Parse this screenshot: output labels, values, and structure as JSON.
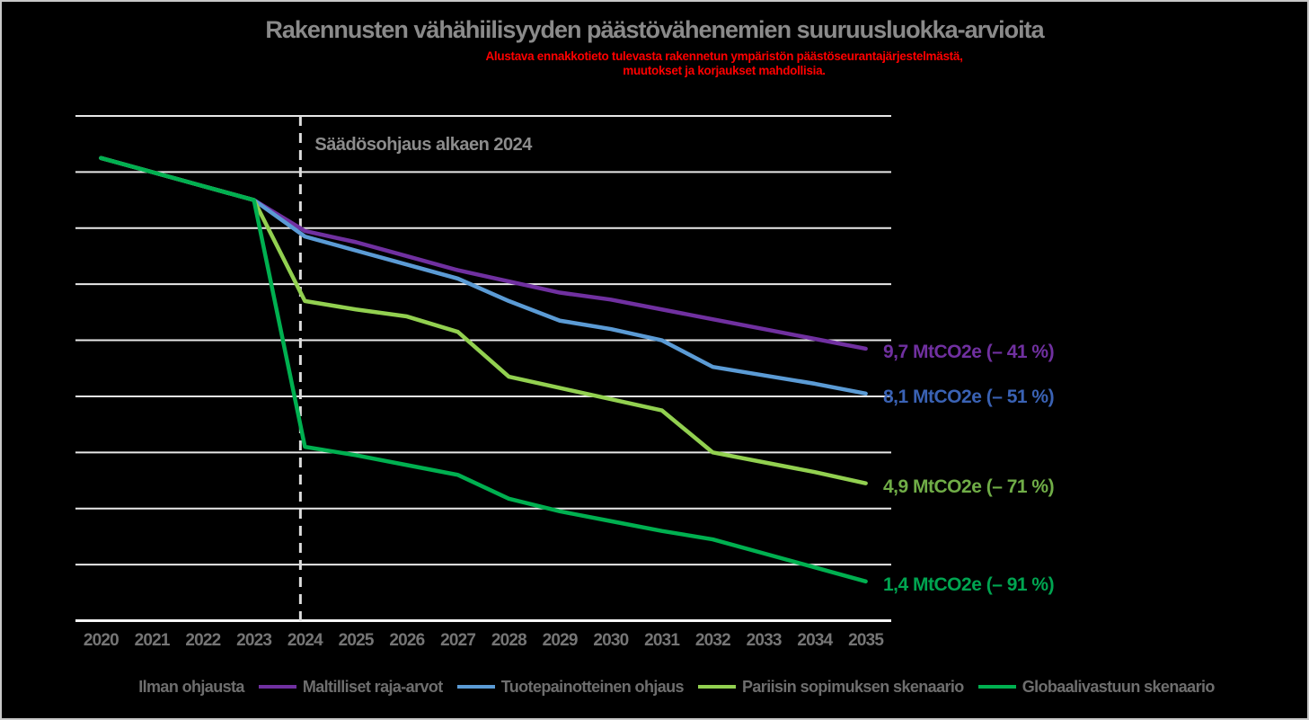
{
  "header": {
    "title": "Rakennusten vähähiilisyyden päästövähenemien suuruusluokka-arvioita",
    "subtitle_line1": "Alustava ennakkotieto tulevasta rakennetun ympäristön päästöseurantajärjestelmästä,",
    "subtitle_line2": "muutokset ja korjaukset mahdollisia."
  },
  "colors": {
    "background": "#000000",
    "title_text": "#8a8a8a",
    "subtitle_text": "#ff0000",
    "gridline": "#e8e8e8",
    "axis_line": "#f5f5f5",
    "regulation_line": "#dcdcdc",
    "axis_label_text": "#757575",
    "legend_text": "#6e6e6e"
  },
  "chart_data": {
    "type": "line",
    "x": [
      2020,
      2021,
      2022,
      2023,
      2024,
      2025,
      2026,
      2027,
      2028,
      2029,
      2030,
      2031,
      2032,
      2033,
      2034,
      2035
    ],
    "xlabel": "",
    "ylabel": "",
    "ylim": [
      0,
      18
    ],
    "grid": true,
    "grid_step": 2,
    "legend_position": "bottom",
    "regulation_marker": {
      "label": "Säädösohjaus alkaen 2024",
      "at_year": 2024,
      "style": "dashed-vertical"
    },
    "series": [
      {
        "name": "Maltilliset raja-arvot",
        "color": "#7030A0",
        "label_color": "#7030A0",
        "end_label": "9,7 MtCO2e (– 41 %)",
        "end_value_mtco2e": 9.7,
        "reduction_percent": -41,
        "values": [
          16.5,
          16.0,
          15.5,
          15.0,
          13.9,
          13.5,
          13.0,
          12.5,
          12.1,
          11.7,
          11.45,
          11.1,
          10.75,
          10.4,
          10.05,
          9.7
        ]
      },
      {
        "name": "Tuotepainotteinen ohjaus",
        "color": "#5B9BD5",
        "label_color": "#3A62B4",
        "end_label": "8,1 MtCO2e (– 51 %)",
        "end_value_mtco2e": 8.1,
        "reduction_percent": -51,
        "values": [
          16.5,
          16.0,
          15.5,
          15.0,
          13.7,
          13.2,
          12.7,
          12.2,
          11.4,
          10.7,
          10.4,
          10.0,
          9.05,
          8.75,
          8.45,
          8.1
        ]
      },
      {
        "name": "Pariisin sopimuksen skenaario",
        "color": "#92D050",
        "label_color": "#70AD47",
        "end_label": "4,9 MtCO2e (– 71 %)",
        "end_value_mtco2e": 4.9,
        "reduction_percent": -71,
        "values": [
          16.5,
          16.0,
          15.5,
          15.0,
          11.4,
          11.1,
          10.85,
          10.3,
          8.7,
          8.3,
          7.9,
          7.5,
          6.0,
          5.65,
          5.3,
          4.9
        ]
      },
      {
        "name": "Globaalivastuun skenaario",
        "color": "#00B050",
        "label_color": "#00A551",
        "end_label": "1,4 MtCO2e (– 91 %)",
        "end_value_mtco2e": 1.4,
        "reduction_percent": -91,
        "values": [
          16.5,
          16.0,
          15.5,
          15.0,
          6.2,
          5.9,
          5.55,
          5.2,
          4.35,
          3.9,
          3.55,
          3.2,
          2.9,
          2.4,
          1.9,
          1.4
        ]
      }
    ],
    "legend": [
      {
        "label": "Ilman ohjausta",
        "color": null
      },
      {
        "label": "Maltilliset raja-arvot",
        "color": "#7030A0"
      },
      {
        "label": "Tuotepainotteinen ohjaus",
        "color": "#5B9BD5"
      },
      {
        "label": "Pariisin sopimuksen skenaario",
        "color": "#92D050"
      },
      {
        "label": "Globaalivastuun skenaario",
        "color": "#00B050"
      }
    ]
  }
}
